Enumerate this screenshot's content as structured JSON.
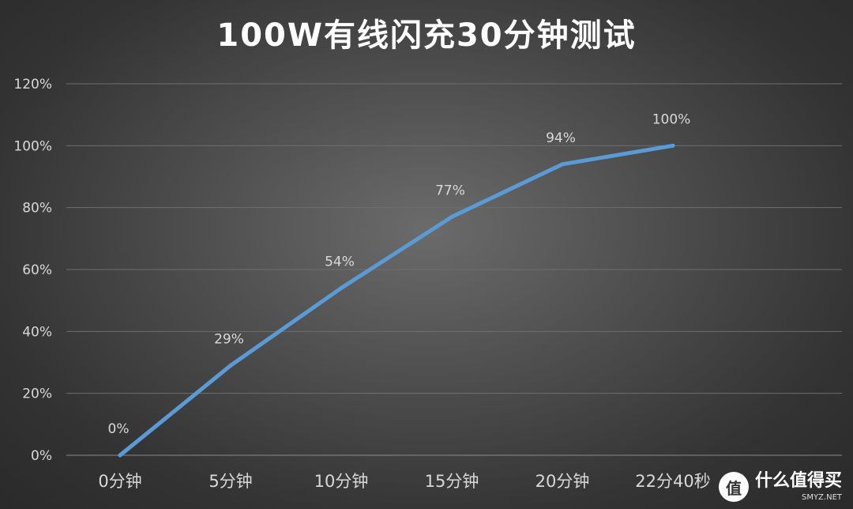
{
  "chart_data": {
    "type": "line",
    "title": "100W有线闪充30分钟测试",
    "categories": [
      "0分钟",
      "5分钟",
      "10分钟",
      "15分钟",
      "20分钟",
      "22分40秒"
    ],
    "series": [
      {
        "values": [
          0,
          29,
          54,
          77,
          94,
          100
        ],
        "color": "#5b9bd5"
      }
    ],
    "data_labels": [
      "0%",
      "29%",
      "54%",
      "77%",
      "94%",
      "100%"
    ],
    "yticks": [
      "0%",
      "20%",
      "40%",
      "60%",
      "80%",
      "100%",
      "120%"
    ],
    "ylim": [
      0,
      120
    ],
    "grid": true,
    "legend": "none"
  },
  "watermark": {
    "logo_glyph": "值",
    "text": "什么值得买",
    "sub": "SMYZ.NET"
  }
}
